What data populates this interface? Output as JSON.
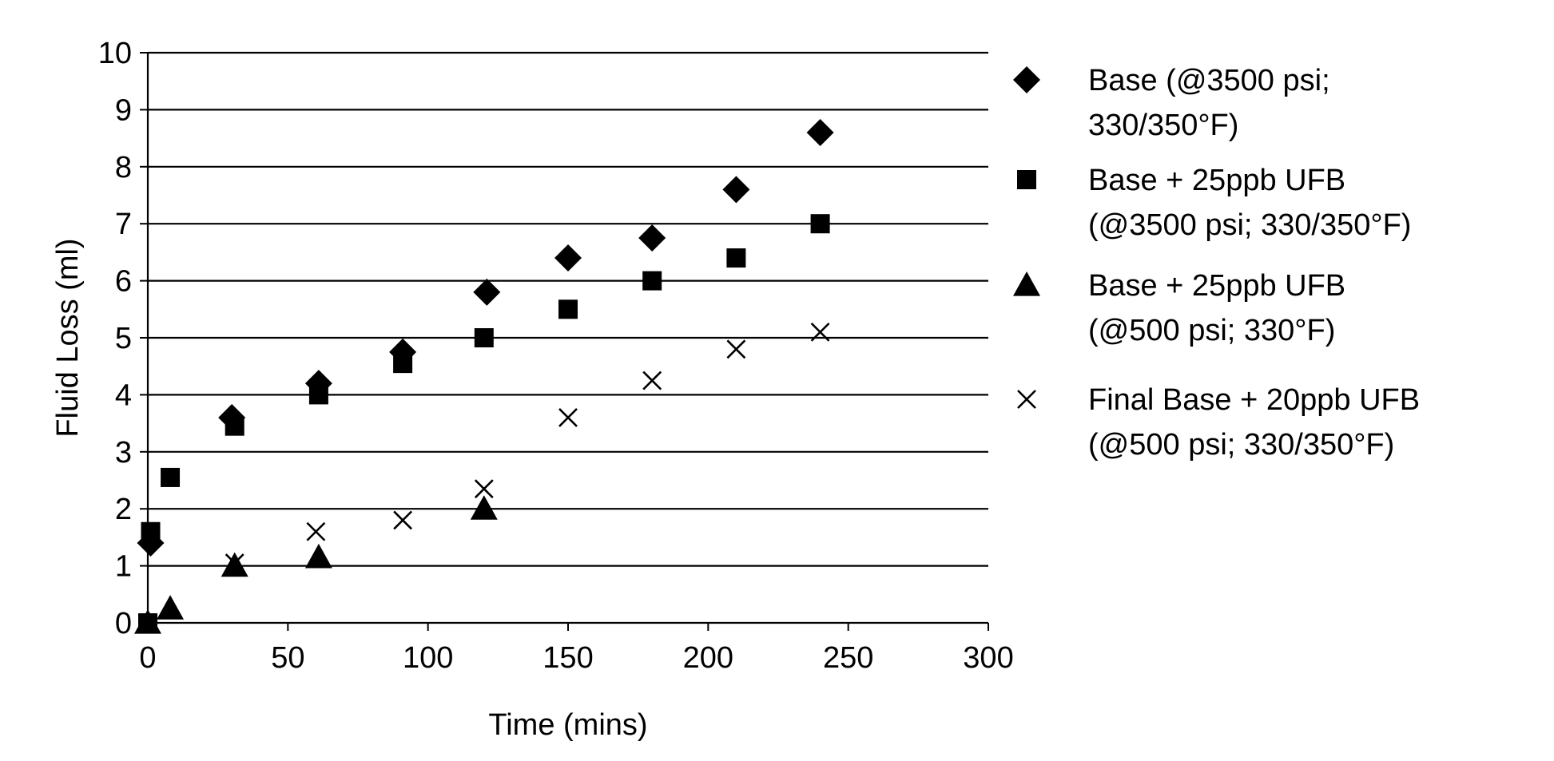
{
  "chart_data": {
    "type": "scatter",
    "title": "",
    "xlabel": "Time (mins)",
    "ylabel": "Fluid Loss (ml)",
    "xlim": [
      0,
      300
    ],
    "ylim": [
      0,
      10
    ],
    "x_ticks": [
      "0",
      "50",
      "100",
      "150",
      "200",
      "250",
      "300"
    ],
    "y_ticks": [
      "0",
      "1",
      "2",
      "3",
      "4",
      "5",
      "6",
      "7",
      "8",
      "9",
      "10"
    ],
    "grid": "horizontal",
    "legend_position": "right",
    "series": [
      {
        "name_lines": [
          "Base (@3500 psi;",
          "330/350°F)"
        ],
        "marker": "diamond",
        "points": [
          [
            1,
            1.4
          ],
          [
            30,
            3.6
          ],
          [
            61,
            4.2
          ],
          [
            91,
            4.75
          ],
          [
            121,
            5.8
          ],
          [
            150,
            6.4
          ],
          [
            180,
            6.75
          ],
          [
            210,
            7.6
          ],
          [
            240,
            8.6
          ]
        ]
      },
      {
        "name_lines": [
          "Base + 25ppb UFB",
          "(@3500 psi; 330/350°F)"
        ],
        "marker": "square",
        "points": [
          [
            0,
            0
          ],
          [
            1,
            1.6
          ],
          [
            8,
            2.55
          ],
          [
            31,
            3.45
          ],
          [
            61,
            4.0
          ],
          [
            91,
            4.55
          ],
          [
            120,
            5.0
          ],
          [
            150,
            5.5
          ],
          [
            180,
            6.0
          ],
          [
            210,
            6.4
          ],
          [
            240,
            7.0
          ]
        ]
      },
      {
        "name_lines": [
          "Base + 25ppb UFB",
          "(@500 psi; 330°F)"
        ],
        "marker": "triangle",
        "points": [
          [
            0,
            0
          ],
          [
            8,
            0.25
          ],
          [
            31,
            1.0
          ],
          [
            61,
            1.15
          ],
          [
            120,
            2.0
          ]
        ]
      },
      {
        "name_lines": [
          "Final Base + 20ppb UFB",
          "(@500 psi; 330/350°F)"
        ],
        "marker": "x",
        "points": [
          [
            31,
            1.05
          ],
          [
            60,
            1.6
          ],
          [
            91,
            1.8
          ],
          [
            120,
            2.35
          ],
          [
            150,
            3.6
          ],
          [
            180,
            4.25
          ],
          [
            210,
            4.8
          ],
          [
            240,
            5.1
          ]
        ]
      }
    ]
  }
}
